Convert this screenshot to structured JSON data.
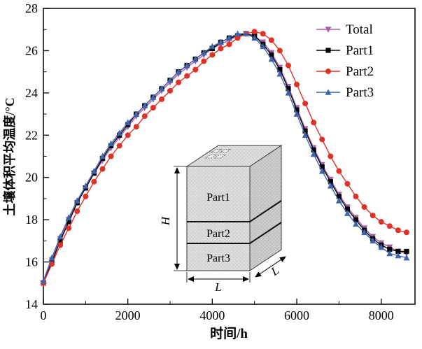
{
  "chart_data": {
    "type": "line",
    "title": "",
    "xlabel": "时间/h",
    "ylabel": "土壤体积平均温度/°C",
    "xlim": [
      0,
      8800
    ],
    "ylim": [
      14,
      28
    ],
    "x_ticks": [
      0,
      2000,
      4000,
      6000,
      8000
    ],
    "y_ticks": [
      14,
      16,
      18,
      20,
      22,
      24,
      26,
      28
    ],
    "x_minor_step": 1000,
    "y_minor_step": 1,
    "grid": false,
    "legend_position": "top-right-inside",
    "x": [
      0,
      200,
      400,
      600,
      800,
      1000,
      1200,
      1400,
      1600,
      1800,
      2000,
      2200,
      2400,
      2600,
      2800,
      3000,
      3200,
      3400,
      3600,
      3800,
      4000,
      4200,
      4400,
      4600,
      4800,
      5000,
      5200,
      5400,
      5600,
      5800,
      6000,
      6200,
      6400,
      6600,
      6800,
      7000,
      7200,
      7400,
      7600,
      7800,
      8000,
      8200,
      8400,
      8600
    ],
    "series": [
      {
        "name": "Total",
        "color": "#a55ba8",
        "marker": "triangle-down",
        "values": [
          15.0,
          16.1,
          17.1,
          18.0,
          18.8,
          19.5,
          20.2,
          20.8,
          21.4,
          21.9,
          22.4,
          22.9,
          23.3,
          23.7,
          24.1,
          24.5,
          24.9,
          25.2,
          25.5,
          25.8,
          26.1,
          26.3,
          26.5,
          26.7,
          26.8,
          26.7,
          26.4,
          25.9,
          25.2,
          24.3,
          23.3,
          22.3,
          21.4,
          20.6,
          19.9,
          19.2,
          18.6,
          18.1,
          17.6,
          17.2,
          16.9,
          16.7,
          16.5,
          16.4
        ]
      },
      {
        "name": "Part1",
        "color": "#000000",
        "marker": "square",
        "values": [
          15.0,
          16.0,
          17.0,
          17.9,
          18.8,
          19.5,
          20.2,
          20.9,
          21.5,
          22.0,
          22.5,
          23.0,
          23.4,
          23.8,
          24.2,
          24.6,
          25.0,
          25.3,
          25.6,
          25.9,
          26.1,
          26.4,
          26.6,
          26.7,
          26.8,
          26.7,
          26.3,
          25.8,
          25.1,
          24.2,
          23.2,
          22.2,
          21.3,
          20.5,
          19.8,
          19.1,
          18.5,
          18.0,
          17.5,
          17.1,
          16.8,
          16.6,
          16.5,
          16.5
        ]
      },
      {
        "name": "Part2",
        "color": "#e03127",
        "marker": "circle",
        "values": [
          15.0,
          15.9,
          16.8,
          17.6,
          18.4,
          19.1,
          19.8,
          20.4,
          21.0,
          21.5,
          22.0,
          22.4,
          22.9,
          23.3,
          23.7,
          24.1,
          24.5,
          24.8,
          25.1,
          25.5,
          25.8,
          26.1,
          26.3,
          26.6,
          26.8,
          26.9,
          26.8,
          26.5,
          26.0,
          25.3,
          24.4,
          23.5,
          22.6,
          21.8,
          21.0,
          20.3,
          19.7,
          19.1,
          18.6,
          18.2,
          17.9,
          17.7,
          17.5,
          17.4
        ]
      },
      {
        "name": "Part3",
        "color": "#3f63ad",
        "marker": "triangle-up",
        "values": [
          15.1,
          16.2,
          17.2,
          18.1,
          18.9,
          19.6,
          20.3,
          21.0,
          21.6,
          22.1,
          22.6,
          23.0,
          23.4,
          23.8,
          24.2,
          24.6,
          25.0,
          25.3,
          25.6,
          25.9,
          26.2,
          26.4,
          26.6,
          26.8,
          26.8,
          26.6,
          26.2,
          25.6,
          24.9,
          24.0,
          23.0,
          22.0,
          21.1,
          20.3,
          19.6,
          18.9,
          18.3,
          17.8,
          17.4,
          17.0,
          16.7,
          16.4,
          16.3,
          16.2
        ]
      }
    ],
    "inset": {
      "part_labels": [
        "Part1",
        "Part2",
        "Part3"
      ],
      "height_label": "H",
      "width_label": "L",
      "depth_label": "L"
    }
  }
}
